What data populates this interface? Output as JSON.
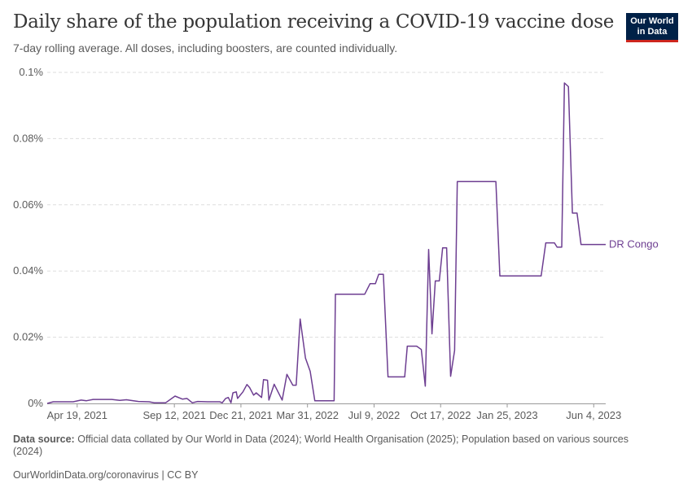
{
  "header": {
    "title": "Daily share of the population receiving a COVID-19 vaccine dose",
    "subtitle": "7-day rolling average. All doses, including boosters, are counted individually."
  },
  "logo": {
    "line1": "Our World",
    "line2": "in Data"
  },
  "footer": {
    "source_label": "Data source:",
    "source_text": "Official data collated by Our World in Data (2024); World Health Organisation (2025); Population based on various sources (2024)",
    "credit": "OurWorldinData.org/coronavirus | CC BY"
  },
  "colors": {
    "series": "#6d3e91",
    "grid": "#dddddd",
    "axis": "#999999"
  },
  "chart_data": {
    "type": "line",
    "title": "Daily share of the population receiving a COVID-19 vaccine dose",
    "ylim": [
      0,
      0.1
    ],
    "y_ticks": [
      {
        "value": 0,
        "label": "0%"
      },
      {
        "value": 0.02,
        "label": "0.02%"
      },
      {
        "value": 0.04,
        "label": "0.04%"
      },
      {
        "value": 0.06,
        "label": "0.06%"
      },
      {
        "value": 0.08,
        "label": "0.08%"
      },
      {
        "value": 0.1,
        "label": "0.1%"
      }
    ],
    "xlim": [
      "2021-03-05",
      "2023-06-22"
    ],
    "x_ticks": [
      {
        "value": "2021-04-19",
        "label": "Apr 19, 2021"
      },
      {
        "value": "2021-09-12",
        "label": "Sep 12, 2021"
      },
      {
        "value": "2021-12-21",
        "label": "Dec 21, 2021"
      },
      {
        "value": "2022-03-31",
        "label": "Mar 31, 2022"
      },
      {
        "value": "2022-07-09",
        "label": "Jul 9, 2022"
      },
      {
        "value": "2022-10-17",
        "label": "Oct 17, 2022"
      },
      {
        "value": "2023-01-25",
        "label": "Jan 25, 2023"
      },
      {
        "value": "2023-06-04",
        "label": "Jun 4, 2023"
      }
    ],
    "grid": true,
    "series": [
      {
        "name": "DR Congo",
        "points": [
          [
            "2021-03-05",
            0
          ],
          [
            "2021-03-14",
            0.0005
          ],
          [
            "2021-04-13",
            0.0005
          ],
          [
            "2021-04-25",
            0.001
          ],
          [
            "2021-05-03",
            0.0008
          ],
          [
            "2021-05-13",
            0.0012
          ],
          [
            "2021-06-10",
            0.0012
          ],
          [
            "2021-06-22",
            0.0009
          ],
          [
            "2021-07-02",
            0.0011
          ],
          [
            "2021-07-20",
            0.0006
          ],
          [
            "2021-08-05",
            0.0005
          ],
          [
            "2021-08-13",
            0.0002
          ],
          [
            "2021-08-30",
            0.0002
          ],
          [
            "2021-09-13",
            0.0022
          ],
          [
            "2021-09-24",
            0.0013
          ],
          [
            "2021-10-01",
            0.0015
          ],
          [
            "2021-10-09",
            0.0002
          ],
          [
            "2021-10-17",
            0.0006
          ],
          [
            "2021-11-01",
            0.0005
          ],
          [
            "2021-11-19",
            0.0005
          ],
          [
            "2021-11-23",
            0.0002
          ],
          [
            "2021-11-28",
            0.0015
          ],
          [
            "2021-12-02",
            0.0018
          ],
          [
            "2021-12-06",
            0.0002
          ],
          [
            "2021-12-09",
            0.0032
          ],
          [
            "2021-12-14",
            0.0035
          ],
          [
            "2021-12-16",
            0.0015
          ],
          [
            "2021-12-24",
            0.0035
          ],
          [
            "2021-12-30",
            0.0057
          ],
          [
            "2022-01-03",
            0.0048
          ],
          [
            "2022-01-09",
            0.0025
          ],
          [
            "2022-01-13",
            0.0032
          ],
          [
            "2022-01-21",
            0.0018
          ],
          [
            "2022-01-24",
            0.0072
          ],
          [
            "2022-01-30",
            0.007
          ],
          [
            "2022-02-01",
            0.001
          ],
          [
            "2022-02-09",
            0.0058
          ],
          [
            "2022-02-21",
            0.001
          ],
          [
            "2022-02-28",
            0.0088
          ],
          [
            "2022-03-09",
            0.0055
          ],
          [
            "2022-03-14",
            0.0055
          ],
          [
            "2022-03-20",
            0.0255
          ],
          [
            "2022-03-28",
            0.0137
          ],
          [
            "2022-04-04",
            0.0097
          ],
          [
            "2022-04-11",
            0.0008
          ],
          [
            "2022-05-10",
            0.0008
          ],
          [
            "2022-05-12",
            0.033
          ],
          [
            "2022-06-25",
            0.033
          ],
          [
            "2022-07-03",
            0.0362
          ],
          [
            "2022-07-11",
            0.0362
          ],
          [
            "2022-07-16",
            0.039
          ],
          [
            "2022-07-23",
            0.039
          ],
          [
            "2022-07-30",
            0.008
          ],
          [
            "2022-08-24",
            0.008
          ],
          [
            "2022-08-28",
            0.0173
          ],
          [
            "2022-09-11",
            0.0173
          ],
          [
            "2022-09-18",
            0.0163
          ],
          [
            "2022-09-24",
            0.0052
          ],
          [
            "2022-09-29",
            0.0465
          ],
          [
            "2022-10-04",
            0.021
          ],
          [
            "2022-10-09",
            0.037
          ],
          [
            "2022-10-15",
            0.037
          ],
          [
            "2022-10-20",
            0.047
          ],
          [
            "2022-10-26",
            0.047
          ],
          [
            "2022-11-01",
            0.0082
          ],
          [
            "2022-11-07",
            0.016
          ],
          [
            "2022-11-11",
            0.067
          ],
          [
            "2023-01-08",
            0.067
          ],
          [
            "2023-01-14",
            0.0385
          ],
          [
            "2023-03-17",
            0.0385
          ],
          [
            "2023-03-24",
            0.0485
          ],
          [
            "2023-04-06",
            0.0485
          ],
          [
            "2023-04-10",
            0.0472
          ],
          [
            "2023-04-17",
            0.0472
          ],
          [
            "2023-04-21",
            0.0968
          ],
          [
            "2023-04-27",
            0.0957
          ],
          [
            "2023-05-03",
            0.0575
          ],
          [
            "2023-05-10",
            0.0575
          ],
          [
            "2023-05-16",
            0.048
          ],
          [
            "2023-06-22",
            0.048
          ]
        ]
      }
    ]
  }
}
